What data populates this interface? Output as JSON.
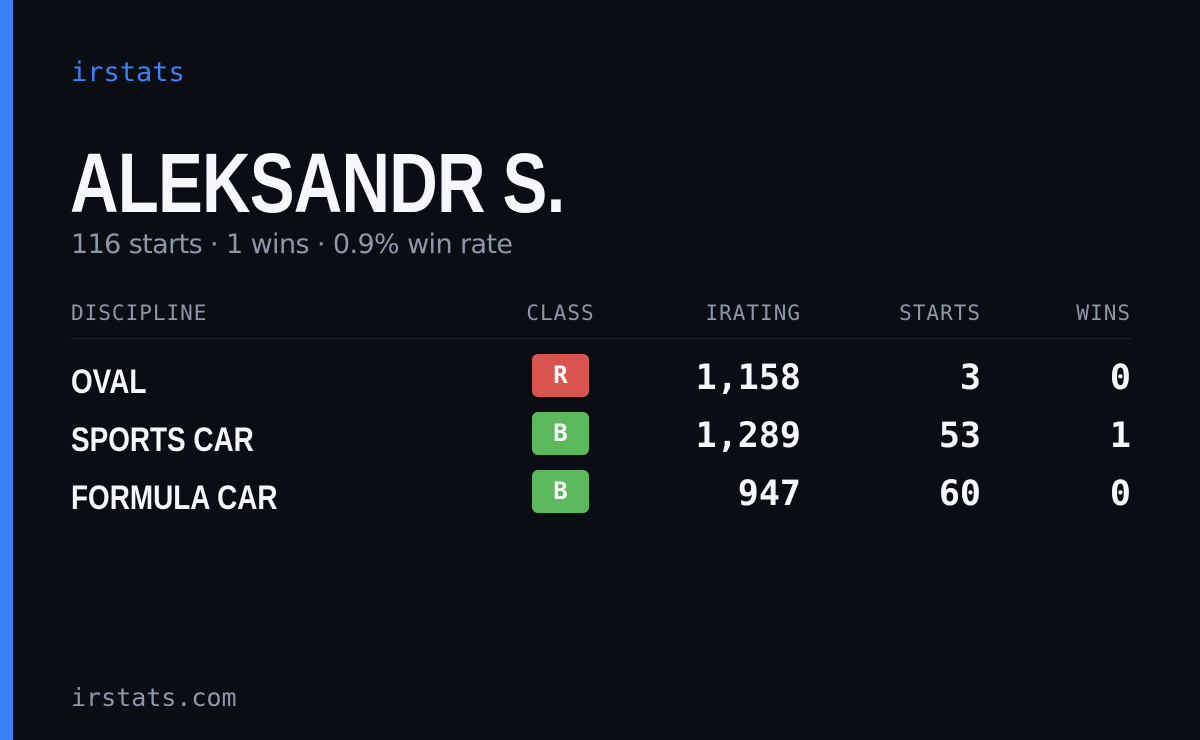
{
  "brand": {
    "name": "irstats",
    "accent_color": "#3b82f6"
  },
  "driver": {
    "name": "ALEKSANDR S.",
    "summary": "116 starts · 1 wins · 0.9% win rate"
  },
  "table": {
    "headers": {
      "discipline": "DISCIPLINE",
      "class": "CLASS",
      "irating": "IRATING",
      "starts": "STARTS",
      "wins": "WINS"
    },
    "rows": [
      {
        "discipline": "OVAL",
        "class": "R",
        "class_color": "#d9534f",
        "irating": "1,158",
        "starts": "3",
        "wins": "0"
      },
      {
        "discipline": "SPORTS CAR",
        "class": "B",
        "class_color": "#5cb85c",
        "irating": "1,289",
        "starts": "53",
        "wins": "1"
      },
      {
        "discipline": "FORMULA CAR",
        "class": "B",
        "class_color": "#5cb85c",
        "irating": "947",
        "starts": "60",
        "wins": "0"
      }
    ]
  },
  "footer": {
    "url": "irstats.com"
  }
}
